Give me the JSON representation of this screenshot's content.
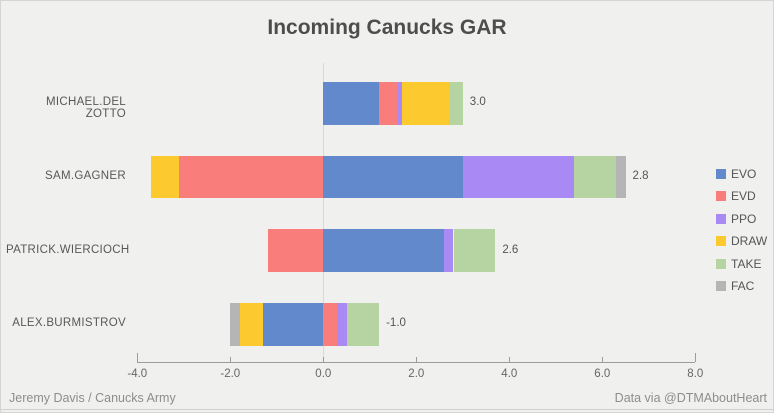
{
  "title": "Incoming Canucks GAR",
  "footer": {
    "left": "Jeremy Davis / Canucks Army",
    "right": "Data via @DTMAboutHeart"
  },
  "colors": {
    "background": "#f0f0ee",
    "zero_gridline": "#d9d9d9",
    "axis": "#9c9c9c",
    "title_text": "#4d4d4d",
    "label_text": "#585858",
    "tick_text": "#666666",
    "footer_text": "#8d8d8d"
  },
  "chart_data": {
    "type": "bar",
    "orientation": "horizontal",
    "stacked": true,
    "title": "Incoming Canucks GAR",
    "categories": [
      "MICHAEL.DEL ZOTTO",
      "SAM.GAGNER",
      "PATRICK.WIERCIOCH",
      "ALEX.BURMISTROV"
    ],
    "series": [
      {
        "name": "EVO",
        "color": "#6289cb",
        "values": [
          1.2,
          3.0,
          2.6,
          -1.3
        ]
      },
      {
        "name": "EVD",
        "color": "#f97d7a",
        "values": [
          0.4,
          -3.1,
          -1.2,
          0.3
        ]
      },
      {
        "name": "PPO",
        "color": "#a98af4",
        "values": [
          0.1,
          2.4,
          0.2,
          0.2
        ]
      },
      {
        "name": "DRAW",
        "color": "#fcca2f",
        "values": [
          1.0,
          -0.6,
          0.0,
          -0.5
        ]
      },
      {
        "name": "TAKE",
        "color": "#b6d4a1",
        "values": [
          0.3,
          0.9,
          0.9,
          0.7
        ]
      },
      {
        "name": "FAC",
        "color": "#b5b5b5",
        "values": [
          0.0,
          0.2,
          0.0,
          -0.2
        ]
      }
    ],
    "totals": [
      "3.0",
      "2.8",
      "2.6",
      "-1.0"
    ],
    "xlim": [
      -4,
      8
    ],
    "x_ticks": [
      -4,
      -2,
      0,
      2,
      4,
      6,
      8
    ],
    "x_tick_labels": [
      "-4.0",
      "-2.0",
      "0.0",
      "2.0",
      "4.0",
      "6.0",
      "8.0"
    ],
    "legend_position": "right",
    "grid": "zero-line-only"
  }
}
